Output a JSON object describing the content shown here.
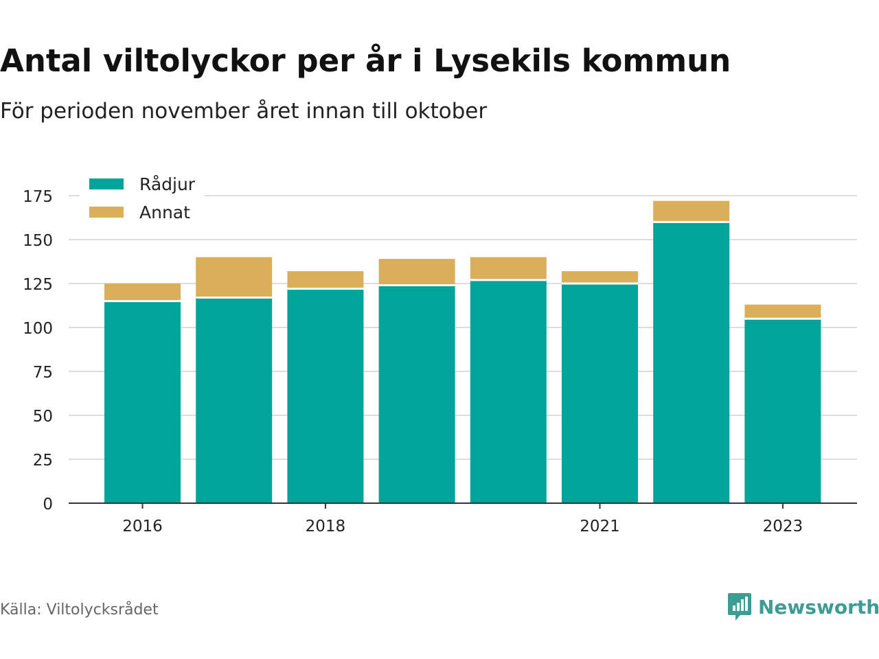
{
  "header": {
    "title": "Antal viltolyckor per år i Lysekils kommun",
    "subtitle": "För perioden november året innan till oktober"
  },
  "footer": {
    "source": "Källa: Viltolycksrådet",
    "brand": "Newsworthy",
    "brand_icon": "bar-chart-speech-bubble-icon"
  },
  "colors": {
    "radjur": "#00a49a",
    "annat": "#dbae5b",
    "brand": "#3d9d95"
  },
  "chart_data": {
    "type": "bar",
    "stacked": true,
    "categories": [
      "2016",
      "2017",
      "2018",
      "2019",
      "2020",
      "2021",
      "2022",
      "2023"
    ],
    "x_tick_labels": [
      "2016",
      "",
      "2018",
      "",
      "",
      "2021",
      "",
      "2023"
    ],
    "series": [
      {
        "name": "Rådjur",
        "values": [
          115,
          117,
          122,
          124,
          127,
          125,
          160,
          105
        ],
        "color": "#00a49a"
      },
      {
        "name": "Annat",
        "values": [
          10,
          23,
          10,
          15,
          13,
          7,
          12,
          8
        ],
        "color": "#dbae5b"
      }
    ],
    "yticks": [
      0,
      25,
      50,
      75,
      100,
      125,
      150,
      175
    ],
    "ylim": [
      0,
      175
    ],
    "grid": true,
    "legend_position": "top-left",
    "title": "Antal viltolyckor per år i Lysekils kommun",
    "subtitle": "För perioden november året innan till oktober",
    "xlabel": "",
    "ylabel": ""
  }
}
